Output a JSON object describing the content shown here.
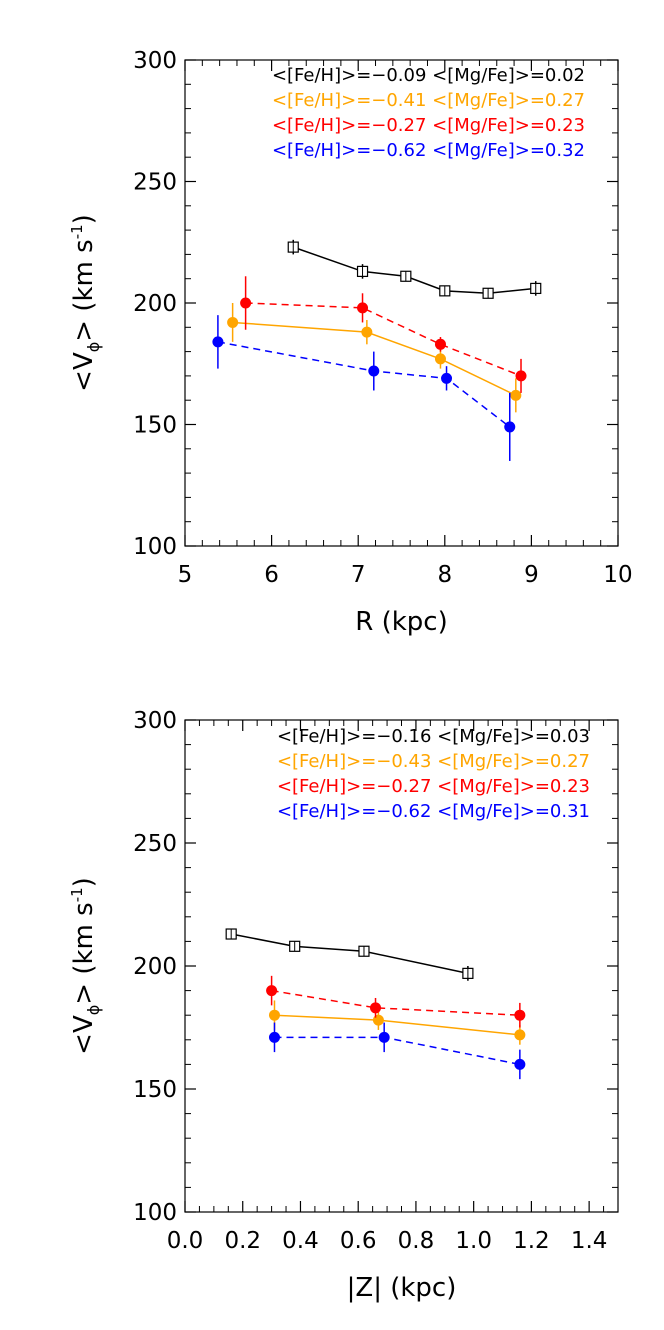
{
  "chart_data": [
    {
      "type": "line",
      "title": "",
      "xlabel": "R (kpc)",
      "ylabel_main": "<V",
      "ylabel_sub": "ϕ",
      "ylabel_tail": ">  (km s",
      "ylabel_sup": "-1",
      "ylabel_close": ")",
      "xlim": [
        5,
        10
      ],
      "ylim": [
        100,
        300
      ],
      "xticks": [
        5,
        6,
        7,
        8,
        9,
        10
      ],
      "xtick_labels": [
        "5",
        "6",
        "7",
        "8",
        "9",
        "10"
      ],
      "yticks": [
        100,
        150,
        200,
        250,
        300
      ],
      "ytick_labels": [
        "100",
        "150",
        "200",
        "250",
        "300"
      ],
      "legend_position": "top-right",
      "series": [
        {
          "legend": "<[Fe/H]>=−0.09 <[Mg/Fe]>=0.02",
          "color": "#000000",
          "marker": "open-square",
          "dash": false,
          "points": [
            {
              "x": 6.25,
              "y": 223,
              "err": 3
            },
            {
              "x": 7.05,
              "y": 213,
              "err": 3
            },
            {
              "x": 7.55,
              "y": 211,
              "err": 2
            },
            {
              "x": 8.0,
              "y": 205,
              "err": 2
            },
            {
              "x": 8.5,
              "y": 204,
              "err": 2
            },
            {
              "x": 9.05,
              "y": 206,
              "err": 3
            }
          ]
        },
        {
          "legend": "<[Fe/H]>=−0.41 <[Mg/Fe]>=0.27",
          "color": "#ffa500",
          "marker": "filled-circle",
          "dash": false,
          "points": [
            {
              "x": 5.55,
              "y": 192,
              "err": 8
            },
            {
              "x": 7.1,
              "y": 188,
              "err": 5
            },
            {
              "x": 7.95,
              "y": 177,
              "err": 4
            },
            {
              "x": 8.82,
              "y": 162,
              "err": 7
            }
          ]
        },
        {
          "legend": "<[Fe/H]>=−0.27 <[Mg/Fe]>=0.23",
          "color": "#ff0000",
          "marker": "filled-circle",
          "dash": true,
          "points": [
            {
              "x": 5.7,
              "y": 200,
              "err": 11
            },
            {
              "x": 7.05,
              "y": 198,
              "err": 6
            },
            {
              "x": 7.95,
              "y": 183,
              "err": 3
            },
            {
              "x": 8.88,
              "y": 170,
              "err": 7
            }
          ]
        },
        {
          "legend": "<[Fe/H]>=−0.62 <[Mg/Fe]>=0.32",
          "color": "#0000ff",
          "marker": "filled-circle",
          "dash": true,
          "points": [
            {
              "x": 5.38,
              "y": 184,
              "err": 11
            },
            {
              "x": 7.18,
              "y": 172,
              "err": 8
            },
            {
              "x": 8.02,
              "y": 169,
              "err": 5
            },
            {
              "x": 8.75,
              "y": 149,
              "err": 14
            }
          ]
        }
      ]
    },
    {
      "type": "line",
      "title": "",
      "xlabel": "|Z| (kpc)",
      "ylabel_main": "<V",
      "ylabel_sub": "ϕ",
      "ylabel_tail": ">  (km s",
      "ylabel_sup": "-1",
      "ylabel_close": ")",
      "xlim": [
        0.0,
        1.5
      ],
      "ylim": [
        100,
        300
      ],
      "xticks": [
        0.0,
        0.2,
        0.4,
        0.6,
        0.8,
        1.0,
        1.2,
        1.4
      ],
      "xtick_labels": [
        "0.0",
        "0.2",
        "0.4",
        "0.6",
        "0.8",
        "1.0",
        "1.2",
        "1.4"
      ],
      "yticks": [
        100,
        150,
        200,
        250,
        300
      ],
      "ytick_labels": [
        "100",
        "150",
        "200",
        "250",
        "300"
      ],
      "legend_position": "top-right",
      "series": [
        {
          "legend": "<[Fe/H]>=−0.16 <[Mg/Fe]>=0.03",
          "color": "#000000",
          "marker": "open-square",
          "dash": false,
          "points": [
            {
              "x": 0.16,
              "y": 213,
              "err": 2
            },
            {
              "x": 0.38,
              "y": 208,
              "err": 2
            },
            {
              "x": 0.62,
              "y": 206,
              "err": 2
            },
            {
              "x": 0.98,
              "y": 197,
              "err": 3
            }
          ]
        },
        {
          "legend": "<[Fe/H]>=−0.43 <[Mg/Fe]>=0.27",
          "color": "#ffa500",
          "marker": "filled-circle",
          "dash": false,
          "points": [
            {
              "x": 0.31,
              "y": 180,
              "err": 6
            },
            {
              "x": 0.67,
              "y": 178,
              "err": 4
            },
            {
              "x": 1.16,
              "y": 172,
              "err": 4
            }
          ]
        },
        {
          "legend": "<[Fe/H]>=−0.27 <[Mg/Fe]>=0.23",
          "color": "#ff0000",
          "marker": "filled-circle",
          "dash": true,
          "points": [
            {
              "x": 0.3,
              "y": 190,
              "err": 6
            },
            {
              "x": 0.66,
              "y": 183,
              "err": 4
            },
            {
              "x": 1.16,
              "y": 180,
              "err": 5
            }
          ]
        },
        {
          "legend": "<[Fe/H]>=−0.62 <[Mg/Fe]>=0.31",
          "color": "#0000ff",
          "marker": "filled-circle",
          "dash": true,
          "points": [
            {
              "x": 0.31,
              "y": 171,
              "err": 6
            },
            {
              "x": 0.69,
              "y": 171,
              "err": 6
            },
            {
              "x": 1.16,
              "y": 160,
              "err": 6
            }
          ]
        }
      ]
    }
  ]
}
